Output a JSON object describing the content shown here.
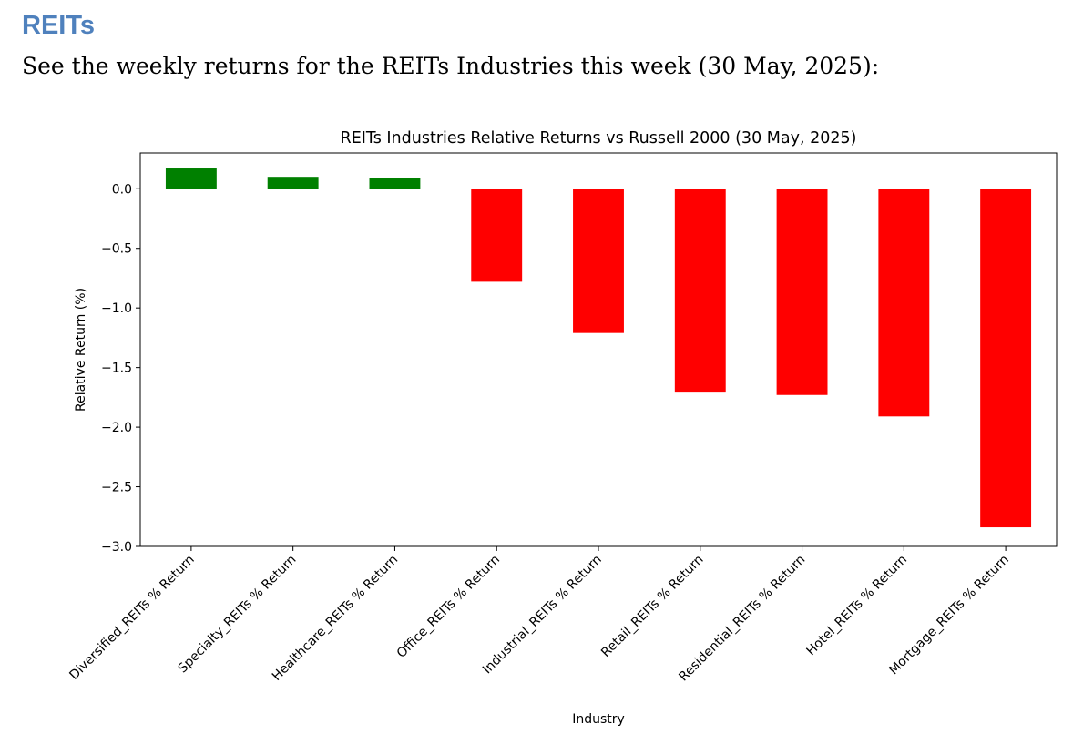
{
  "heading": "REITs",
  "intro": "See the weekly returns for the REITs Industries this week (30 May, 2025):",
  "chart_data": {
    "type": "bar",
    "title": "REITs Industries Relative Returns vs Russell 2000 (30 May, 2025)",
    "xlabel": "Industry",
    "ylabel": "Relative Return (%)",
    "categories": [
      "Diversified_REITs % Return",
      "Specialty_REITs % Return",
      "Healthcare_REITs % Return",
      "Office_REITs % Return",
      "Industrial_REITs % Return",
      "Retail_REITs % Return",
      "Residential_REITs % Return",
      "Hotel_REITs % Return",
      "Mortgage_REITs % Return"
    ],
    "values": [
      0.17,
      0.1,
      0.09,
      -0.78,
      -1.21,
      -1.71,
      -1.73,
      -1.91,
      -2.84
    ],
    "ylim": [
      -3.0,
      0.3
    ],
    "yticks": [
      0.0,
      -0.5,
      -1.0,
      -1.5,
      -2.0,
      -2.5,
      -3.0
    ],
    "ytick_labels": [
      "0.0",
      "−0.5",
      "−1.0",
      "−1.5",
      "−2.0",
      "−2.5",
      "−3.0"
    ],
    "colors": {
      "positive": "#008000",
      "negative": "#ff0000"
    },
    "grid": false,
    "legend": "none"
  }
}
